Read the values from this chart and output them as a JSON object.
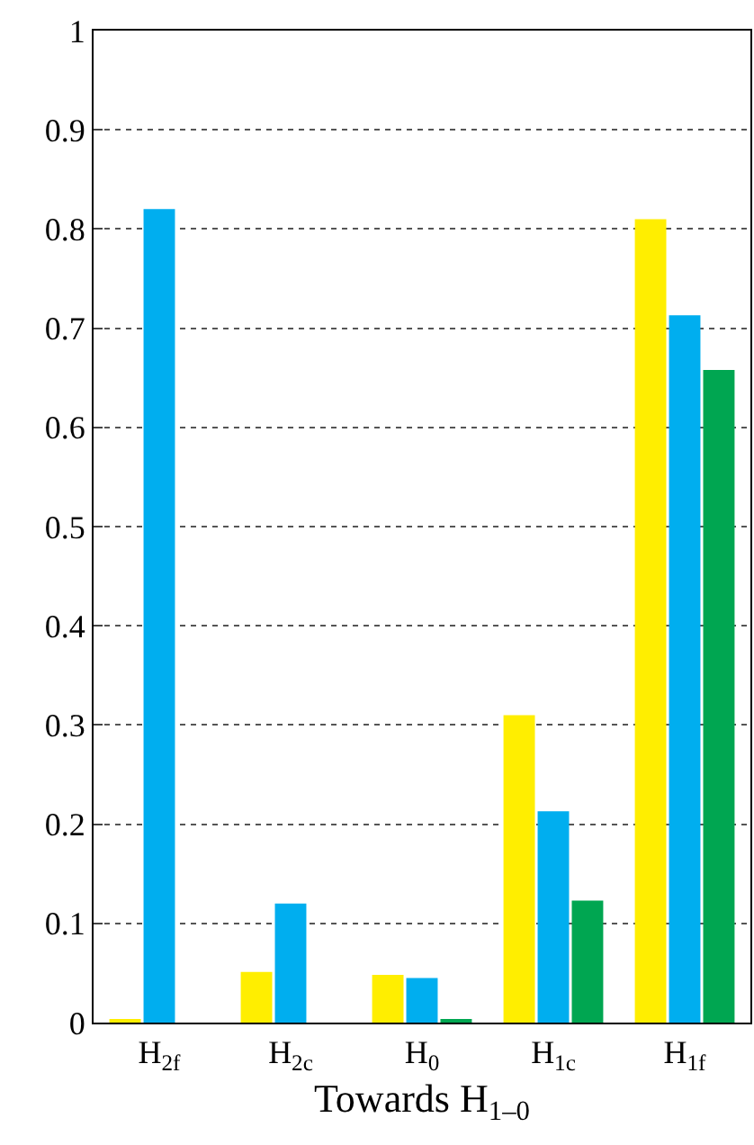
{
  "chart_data": {
    "type": "bar",
    "xlabel": "Towards H$_{1–0}$",
    "categories": [
      "H$_{2f}$",
      "H$_{2c}$",
      "H$_{0}$",
      "H$_{1c}$",
      "H$_{1f}$"
    ],
    "series": [
      {
        "color": "#ffee00",
        "values": [
          0.003,
          0.051,
          0.048,
          0.31,
          0.81
        ]
      },
      {
        "color": "#00aeef",
        "values": [
          0.82,
          0.12,
          0.045,
          0.213,
          0.713
        ]
      },
      {
        "color": "#00a651",
        "values": [
          0,
          0,
          0.003,
          0.123,
          0.658
        ]
      }
    ],
    "ylim": [
      0,
      1
    ],
    "yticks": [
      0,
      0.1,
      0.2,
      0.3,
      0.4,
      0.5,
      0.6,
      0.7,
      0.8,
      0.9,
      1
    ],
    "grid": "y"
  }
}
